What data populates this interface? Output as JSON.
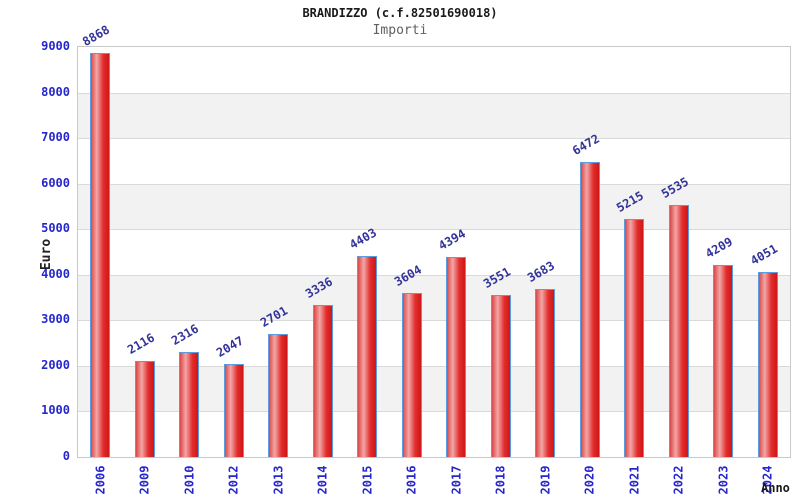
{
  "chart_data": {
    "type": "bar",
    "title": "BRANDIZZO (c.f.82501690018)",
    "subtitle": "Importi",
    "xlabel": "Anno",
    "ylabel": "Euro",
    "categories": [
      "2006",
      "2009",
      "2010",
      "2012",
      "2013",
      "2014",
      "2015",
      "2016",
      "2017",
      "2018",
      "2019",
      "2020",
      "2021",
      "2022",
      "2023",
      "2024"
    ],
    "values": [
      8868,
      2116,
      2316,
      2047,
      2701,
      3336,
      4403,
      3604,
      4394,
      3551,
      3683,
      6472,
      5215,
      5535,
      4209,
      4051
    ],
    "ylim": [
      0,
      9000
    ],
    "ytick_step": 1000,
    "yticks": [
      0,
      1000,
      2000,
      3000,
      4000,
      5000,
      6000,
      7000,
      8000,
      9000
    ],
    "grid": true,
    "bands": "alternating horizontal stripes",
    "legend": "none",
    "value_labels": true,
    "colors": {
      "bar_edge_left": "#dc4848",
      "bar_highlight": "#f2a6a6",
      "bar_mid": "#e22e2e",
      "bar_edge_right": "#d01616",
      "bar_border": "#5b9be0",
      "axis_tick_label": "#2626cc",
      "value_label": "#333399",
      "band_fill": "#f2f2f2",
      "grid_line": "#d9d9d9",
      "plot_border": "#c9c9c9",
      "title_color": "#1a1a1a",
      "subtitle_color": "#5f5f5f",
      "axis_title_color": "#222222",
      "background": "#ffffff"
    }
  }
}
